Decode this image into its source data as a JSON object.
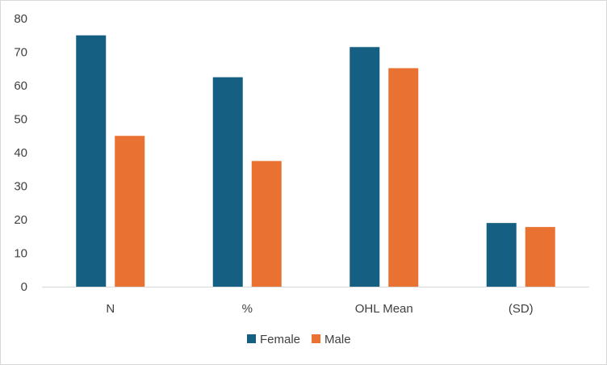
{
  "chart_data": {
    "type": "bar",
    "categories": [
      "N",
      "%",
      "OHL Mean",
      "(SD)"
    ],
    "series": [
      {
        "name": "Female",
        "values": [
          75,
          62.5,
          71.5,
          19
        ],
        "color": "#156082"
      },
      {
        "name": "Male",
        "values": [
          45,
          37.5,
          65.2,
          17.8
        ],
        "color": "#E97132"
      }
    ],
    "ylim": [
      0,
      80
    ],
    "yticks": [
      0,
      10,
      20,
      30,
      40,
      50,
      60,
      70,
      80
    ],
    "grid": false,
    "legend_position": "bottom"
  }
}
